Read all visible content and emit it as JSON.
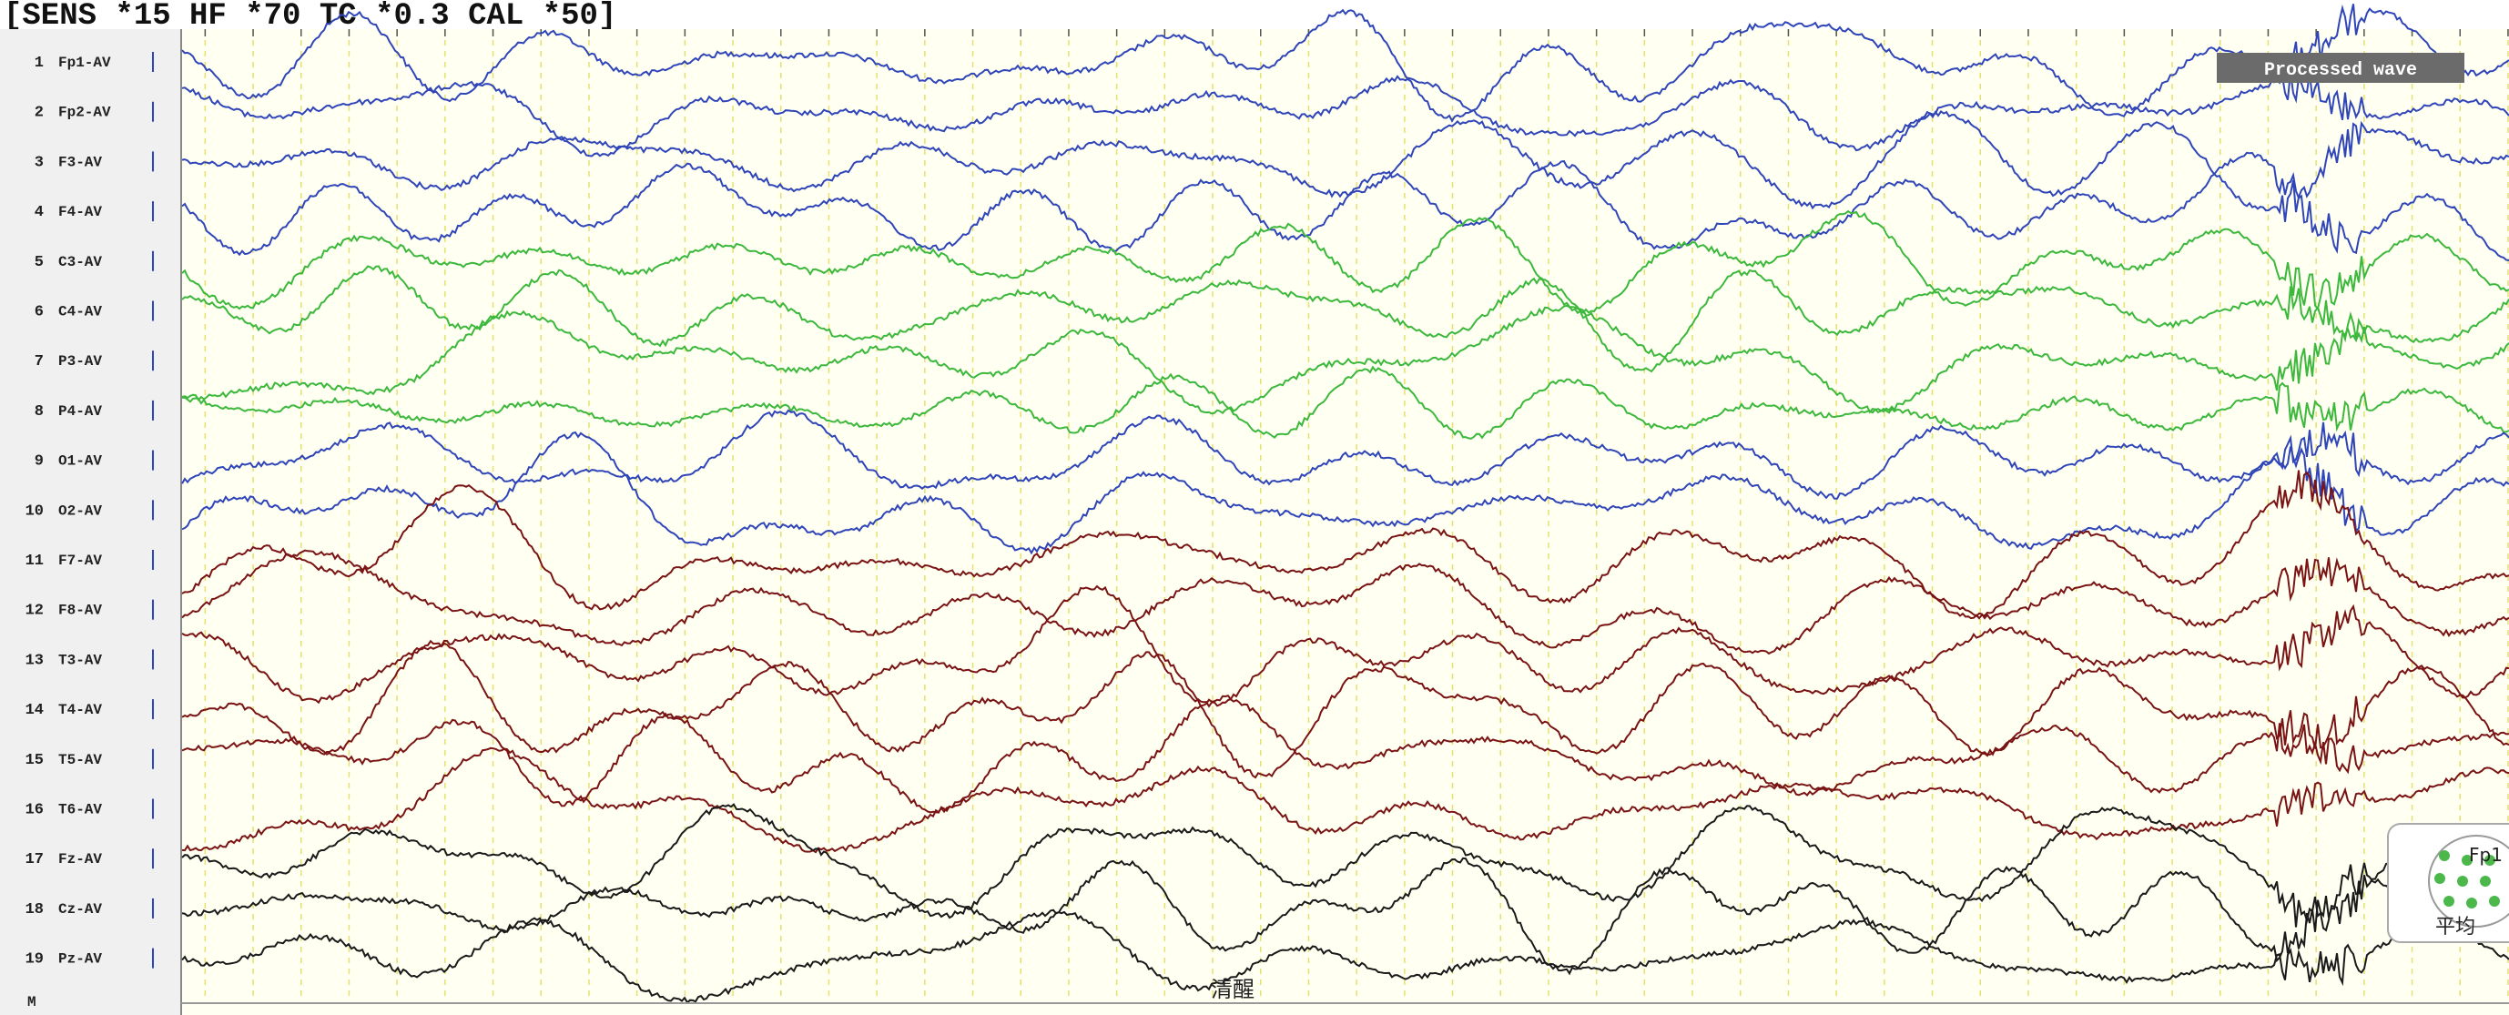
{
  "header": {
    "settings": "[SENS *15  HF *70  TC *0.3  CAL *50]"
  },
  "badge": "Processed wave",
  "annotation": "清醒",
  "marker_row": "M",
  "inset": {
    "electrode": "Fp1",
    "reference": "平均"
  },
  "channels": [
    {
      "number": "1",
      "label": "Fp1-AV",
      "color": "#2f45b8"
    },
    {
      "number": "2",
      "label": "Fp2-AV",
      "color": "#2f45b8"
    },
    {
      "number": "3",
      "label": "F3-AV",
      "color": "#2f45b8"
    },
    {
      "number": "4",
      "label": "F4-AV",
      "color": "#2f45b8"
    },
    {
      "number": "5",
      "label": "C3-AV",
      "color": "#3cb83c"
    },
    {
      "number": "6",
      "label": "C4-AV",
      "color": "#3cb83c"
    },
    {
      "number": "7",
      "label": "P3-AV",
      "color": "#3cb83c"
    },
    {
      "number": "8",
      "label": "P4-AV",
      "color": "#3cb83c"
    },
    {
      "number": "9",
      "label": "O1-AV",
      "color": "#2f45b8"
    },
    {
      "number": "10",
      "label": "O2-AV",
      "color": "#2f45b8"
    },
    {
      "number": "11",
      "label": "F7-AV",
      "color": "#7a1414"
    },
    {
      "number": "12",
      "label": "F8-AV",
      "color": "#7a1414"
    },
    {
      "number": "13",
      "label": "T3-AV",
      "color": "#7a1414"
    },
    {
      "number": "14",
      "label": "T4-AV",
      "color": "#7a1414"
    },
    {
      "number": "15",
      "label": "T5-AV",
      "color": "#7a1414"
    },
    {
      "number": "16",
      "label": "T6-AV",
      "color": "#7a1414"
    },
    {
      "number": "17",
      "label": "Fz-AV",
      "color": "#1a1a1a"
    },
    {
      "number": "18",
      "label": "Cz-AV",
      "color": "#1a1a1a"
    },
    {
      "number": "19",
      "label": "Pz-AV",
      "color": "#1a1a1a"
    }
  ]
}
